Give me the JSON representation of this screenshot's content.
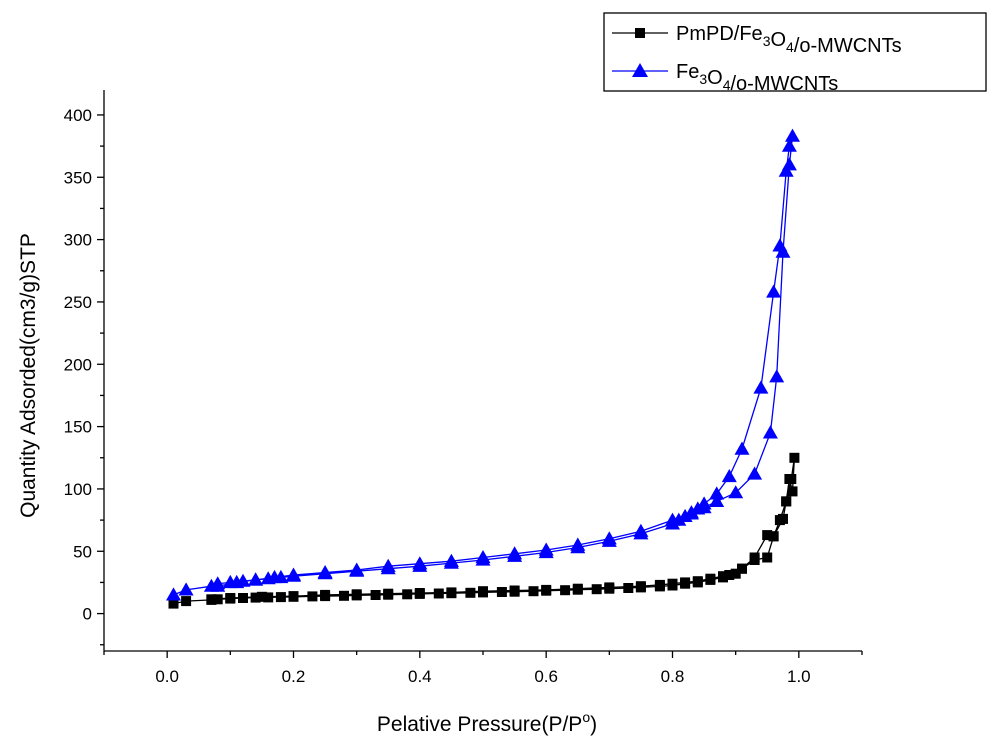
{
  "chart_data": {
    "type": "scatter",
    "title": "",
    "xlabel": "Pelative Pressure(P/P°)",
    "xlabel_parts": [
      "Pelative Pressure(P/P",
      "o",
      ")"
    ],
    "ylabel": "Quantity Adsorded(cm3/g)STP",
    "xlim": [
      -0.1,
      1.1
    ],
    "ylim": [
      -30,
      420
    ],
    "xticks": [
      0.0,
      0.2,
      0.4,
      0.6,
      0.8,
      1.0
    ],
    "xtick_labels": [
      "0.0",
      "0.2",
      "0.4",
      "0.6",
      "0.8",
      "1.0"
    ],
    "yticks": [
      0,
      50,
      100,
      150,
      200,
      250,
      300,
      350,
      400
    ],
    "ytick_labels": [
      "0",
      "50",
      "100",
      "150",
      "200",
      "250",
      "300",
      "350",
      "400"
    ],
    "grid": false,
    "legend_position": "top-right",
    "series": [
      {
        "name": "PmPD/Fe3O4/o-MWCNTs",
        "name_parts": [
          {
            "t": "PmPD/Fe",
            "s": false
          },
          {
            "t": "3",
            "s": true
          },
          {
            "t": "O",
            "s": false
          },
          {
            "t": "4",
            "s": true
          },
          {
            "t": "/o-MWCNTs",
            "s": false
          }
        ],
        "color": "#000000",
        "marker": "square",
        "x": [
          0.01,
          0.03,
          0.07,
          0.08,
          0.1,
          0.12,
          0.14,
          0.16,
          0.18,
          0.2,
          0.23,
          0.25,
          0.28,
          0.3,
          0.33,
          0.35,
          0.38,
          0.4,
          0.43,
          0.45,
          0.48,
          0.5,
          0.53,
          0.55,
          0.58,
          0.6,
          0.63,
          0.65,
          0.68,
          0.7,
          0.73,
          0.75,
          0.78,
          0.8,
          0.82,
          0.84,
          0.86,
          0.88,
          0.89,
          0.91,
          0.93,
          0.95,
          0.96,
          0.97,
          0.98,
          0.985,
          0.99,
          0.993,
          0.988,
          0.98,
          0.975,
          0.96,
          0.95,
          0.93,
          0.91,
          0.9,
          0.88,
          0.86,
          0.84,
          0.82,
          0.8,
          0.78,
          0.75,
          0.7,
          0.65,
          0.6,
          0.55,
          0.5,
          0.45,
          0.4,
          0.35,
          0.3,
          0.25,
          0.2,
          0.15,
          0.1,
          0.07
        ],
        "y": [
          8,
          10,
          11,
          11.5,
          12,
          12.5,
          12.8,
          13,
          13.2,
          13.5,
          13.8,
          14,
          14.3,
          14.6,
          14.9,
          15.2,
          15.5,
          15.8,
          16.1,
          16.4,
          16.7,
          17,
          17.3,
          17.6,
          18,
          18.4,
          18.8,
          19.2,
          19.6,
          20,
          20.5,
          21,
          21.8,
          22.5,
          24,
          25,
          27,
          29,
          31,
          36,
          45,
          63,
          62,
          75,
          90,
          108,
          98,
          125,
          108,
          90,
          76,
          62,
          45,
          43,
          36,
          32,
          30,
          28,
          26,
          25,
          24,
          23,
          22,
          21,
          20,
          19,
          18.5,
          18,
          17,
          16.5,
          16,
          15.5,
          15,
          14,
          13.5,
          12.5,
          11.5
        ]
      },
      {
        "name": "Fe3O4/o-MWCNTs",
        "name_parts": [
          {
            "t": "Fe",
            "s": false
          },
          {
            "t": "3",
            "s": true
          },
          {
            "t": "O",
            "s": false
          },
          {
            "t": "4",
            "s": true
          },
          {
            "t": "/o-MWCNTs",
            "s": false
          }
        ],
        "color": "#0000ff",
        "marker": "triangle",
        "x": [
          0.01,
          0.03,
          0.07,
          0.08,
          0.1,
          0.12,
          0.14,
          0.16,
          0.18,
          0.2,
          0.25,
          0.3,
          0.35,
          0.4,
          0.45,
          0.5,
          0.55,
          0.6,
          0.65,
          0.7,
          0.75,
          0.8,
          0.81,
          0.82,
          0.83,
          0.84,
          0.85,
          0.87,
          0.89,
          0.91,
          0.94,
          0.96,
          0.97,
          0.98,
          0.985,
          0.99,
          0.985,
          0.975,
          0.965,
          0.955,
          0.93,
          0.9,
          0.87,
          0.85,
          0.83,
          0.8,
          0.75,
          0.7,
          0.65,
          0.6,
          0.55,
          0.5,
          0.45,
          0.4,
          0.35,
          0.3,
          0.25,
          0.2,
          0.17,
          0.14,
          0.11,
          0.08
        ],
        "y": [
          15,
          19,
          22,
          24,
          25,
          26,
          27,
          28,
          29,
          30,
          32,
          34,
          36,
          38,
          40.5,
          43,
          46,
          49,
          53,
          58,
          64,
          72,
          75,
          78,
          81,
          84,
          88,
          96,
          110,
          132,
          181,
          258,
          295,
          355,
          375,
          383,
          360,
          290,
          190,
          145,
          112,
          97,
          90,
          85,
          80,
          75,
          66,
          60,
          55,
          51,
          48,
          45,
          42,
          40,
          38,
          35,
          33,
          31,
          29,
          27,
          25,
          22
        ]
      }
    ]
  }
}
